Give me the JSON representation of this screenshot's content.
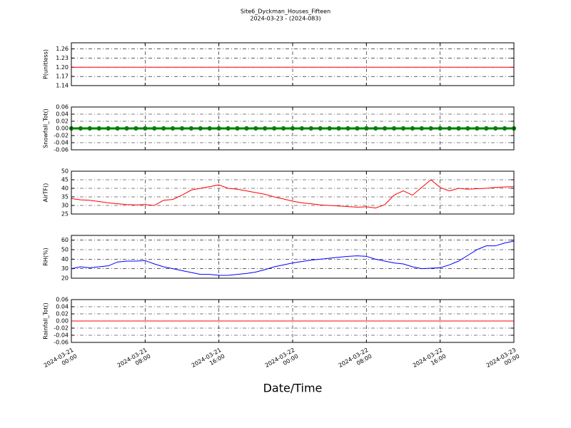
{
  "title": "Site6_Dyckman_Houses_Fifteen",
  "subtitle": "2024-03-23 - (2024-083)",
  "xlabel": "Date/Time",
  "chart_data": [
    {
      "type": "line",
      "ylabel": "P(unitless)",
      "grid": true,
      "x": [
        "2024-03-21 00:00",
        "2024-03-21 01:00",
        "2024-03-21 02:00",
        "2024-03-21 03:00",
        "2024-03-21 04:00",
        "2024-03-21 05:00",
        "2024-03-21 06:00",
        "2024-03-21 07:00",
        "2024-03-21 08:00",
        "2024-03-21 09:00",
        "2024-03-21 10:00",
        "2024-03-21 11:00",
        "2024-03-21 12:00",
        "2024-03-21 13:00",
        "2024-03-21 14:00",
        "2024-03-21 15:00",
        "2024-03-21 16:00",
        "2024-03-21 17:00",
        "2024-03-21 18:00",
        "2024-03-21 19:00",
        "2024-03-21 20:00",
        "2024-03-21 21:00",
        "2024-03-21 22:00",
        "2024-03-21 23:00",
        "2024-03-22 00:00",
        "2024-03-22 01:00",
        "2024-03-22 02:00",
        "2024-03-22 03:00",
        "2024-03-22 04:00",
        "2024-03-22 05:00",
        "2024-03-22 06:00",
        "2024-03-22 07:00",
        "2024-03-22 08:00",
        "2024-03-22 09:00",
        "2024-03-22 10:00",
        "2024-03-22 11:00",
        "2024-03-22 12:00",
        "2024-03-22 13:00",
        "2024-03-22 14:00",
        "2024-03-22 15:00",
        "2024-03-22 16:00",
        "2024-03-22 17:00",
        "2024-03-22 18:00",
        "2024-03-22 19:00",
        "2024-03-22 20:00",
        "2024-03-22 21:00",
        "2024-03-22 22:00",
        "2024-03-22 23:00",
        "2024-03-23 00:00"
      ],
      "xlim": [
        "2024-03-21 00:00",
        "2024-03-23 00:00"
      ],
      "ylim": [
        1.14,
        1.28
      ],
      "yticks": [
        1.14,
        1.17,
        {
          "value": 1.2,
          "label": "1.20"
        },
        1.23,
        1.26
      ],
      "series": [
        {
          "color": "#ff0000",
          "values": [
            1.2,
            1.2,
            1.2,
            1.2,
            1.2,
            1.2,
            1.2,
            1.2,
            1.2,
            1.2,
            1.2,
            1.2,
            1.2,
            1.2,
            1.2,
            1.2,
            1.2,
            1.2,
            1.2,
            1.2,
            1.2,
            1.2,
            1.2,
            1.2,
            1.2,
            1.2,
            1.2,
            1.2,
            1.2,
            1.2,
            1.2,
            1.2,
            1.2,
            1.2,
            1.2,
            1.2,
            1.2,
            1.2,
            1.2,
            1.2,
            1.2,
            1.2,
            1.2,
            1.2,
            1.2,
            1.2,
            1.2,
            1.2,
            1.2
          ]
        }
      ]
    },
    {
      "type": "line",
      "ylabel": "Snowfall_Tot()",
      "grid": true,
      "x": [
        "2024-03-21 00:00",
        "2024-03-21 01:00",
        "2024-03-21 02:00",
        "2024-03-21 03:00",
        "2024-03-21 04:00",
        "2024-03-21 05:00",
        "2024-03-21 06:00",
        "2024-03-21 07:00",
        "2024-03-21 08:00",
        "2024-03-21 09:00",
        "2024-03-21 10:00",
        "2024-03-21 11:00",
        "2024-03-21 12:00",
        "2024-03-21 13:00",
        "2024-03-21 14:00",
        "2024-03-21 15:00",
        "2024-03-21 16:00",
        "2024-03-21 17:00",
        "2024-03-21 18:00",
        "2024-03-21 19:00",
        "2024-03-21 20:00",
        "2024-03-21 21:00",
        "2024-03-21 22:00",
        "2024-03-21 23:00",
        "2024-03-22 00:00",
        "2024-03-22 01:00",
        "2024-03-22 02:00",
        "2024-03-22 03:00",
        "2024-03-22 04:00",
        "2024-03-22 05:00",
        "2024-03-22 06:00",
        "2024-03-22 07:00",
        "2024-03-22 08:00",
        "2024-03-22 09:00",
        "2024-03-22 10:00",
        "2024-03-22 11:00",
        "2024-03-22 12:00",
        "2024-03-22 13:00",
        "2024-03-22 14:00",
        "2024-03-22 15:00",
        "2024-03-22 16:00",
        "2024-03-22 17:00",
        "2024-03-22 18:00",
        "2024-03-22 19:00",
        "2024-03-22 20:00",
        "2024-03-22 21:00",
        "2024-03-22 22:00",
        "2024-03-22 23:00",
        "2024-03-23 00:00"
      ],
      "xlim": [
        "2024-03-21 00:00",
        "2024-03-23 00:00"
      ],
      "ylim": [
        -0.06,
        0.06
      ],
      "yticks": [
        -0.06,
        -0.04,
        -0.02,
        {
          "value": 0,
          "label": "0.00"
        },
        0.02,
        0.04,
        0.06
      ],
      "series": [
        {
          "color": "#008000",
          "marker": "o",
          "values": [
            0,
            0,
            0,
            0,
            0,
            0,
            0,
            0,
            0,
            0,
            0,
            0,
            0,
            0,
            0,
            0,
            0,
            0,
            0,
            0,
            0,
            0,
            0,
            0,
            0,
            0,
            0,
            0,
            0,
            0,
            0,
            0,
            0,
            0,
            0,
            0,
            0,
            0,
            0,
            0,
            0,
            0,
            0,
            0,
            0,
            0,
            0,
            0,
            0
          ]
        }
      ]
    },
    {
      "type": "line",
      "ylabel": "AirTF()",
      "grid": true,
      "x": [
        "2024-03-21 00:00",
        "2024-03-21 01:00",
        "2024-03-21 02:00",
        "2024-03-21 03:00",
        "2024-03-21 04:00",
        "2024-03-21 05:00",
        "2024-03-21 06:00",
        "2024-03-21 07:00",
        "2024-03-21 08:00",
        "2024-03-21 09:00",
        "2024-03-21 10:00",
        "2024-03-21 11:00",
        "2024-03-21 12:00",
        "2024-03-21 13:00",
        "2024-03-21 14:00",
        "2024-03-21 15:00",
        "2024-03-21 16:00",
        "2024-03-21 17:00",
        "2024-03-21 18:00",
        "2024-03-21 19:00",
        "2024-03-21 20:00",
        "2024-03-21 21:00",
        "2024-03-21 22:00",
        "2024-03-21 23:00",
        "2024-03-22 00:00",
        "2024-03-22 01:00",
        "2024-03-22 02:00",
        "2024-03-22 03:00",
        "2024-03-22 04:00",
        "2024-03-22 05:00",
        "2024-03-22 06:00",
        "2024-03-22 07:00",
        "2024-03-22 08:00",
        "2024-03-22 09:00",
        "2024-03-22 10:00",
        "2024-03-22 11:00",
        "2024-03-22 12:00",
        "2024-03-22 13:00",
        "2024-03-22 14:00",
        "2024-03-22 15:00",
        "2024-03-22 16:00",
        "2024-03-22 17:00",
        "2024-03-22 18:00",
        "2024-03-22 19:00",
        "2024-03-22 20:00",
        "2024-03-22 21:00",
        "2024-03-22 22:00",
        "2024-03-22 23:00",
        "2024-03-23 00:00"
      ],
      "xlim": [
        "2024-03-21 00:00",
        "2024-03-23 00:00"
      ],
      "ylim": [
        25,
        50
      ],
      "yticks": [
        25,
        30,
        35,
        40,
        45,
        50
      ],
      "series": [
        {
          "color": "#ff0000",
          "values": [
            34,
            33.3,
            33,
            32.3,
            31.5,
            31,
            30.5,
            30.3,
            30.5,
            30,
            33,
            33.5,
            36,
            39,
            40,
            41,
            42,
            40,
            39.5,
            38.5,
            37.5,
            36.5,
            35,
            33.8,
            32.5,
            31.5,
            31,
            30.3,
            30,
            29.7,
            29.3,
            29,
            29.2,
            28.5,
            30.5,
            36,
            38.5,
            36,
            40.5,
            45,
            40.5,
            38.5,
            40,
            39.5,
            39.8,
            40,
            40.5,
            40.8,
            41
          ]
        }
      ]
    },
    {
      "type": "line",
      "ylabel": "RH(%)",
      "grid": true,
      "x": [
        "2024-03-21 00:00",
        "2024-03-21 01:00",
        "2024-03-21 02:00",
        "2024-03-21 03:00",
        "2024-03-21 04:00",
        "2024-03-21 05:00",
        "2024-03-21 06:00",
        "2024-03-21 07:00",
        "2024-03-21 08:00",
        "2024-03-21 09:00",
        "2024-03-21 10:00",
        "2024-03-21 11:00",
        "2024-03-21 12:00",
        "2024-03-21 13:00",
        "2024-03-21 14:00",
        "2024-03-21 15:00",
        "2024-03-21 16:00",
        "2024-03-21 17:00",
        "2024-03-21 18:00",
        "2024-03-21 19:00",
        "2024-03-21 20:00",
        "2024-03-21 21:00",
        "2024-03-21 22:00",
        "2024-03-21 23:00",
        "2024-03-22 00:00",
        "2024-03-22 01:00",
        "2024-03-22 02:00",
        "2024-03-22 03:00",
        "2024-03-22 04:00",
        "2024-03-22 05:00",
        "2024-03-22 06:00",
        "2024-03-22 07:00",
        "2024-03-22 08:00",
        "2024-03-22 09:00",
        "2024-03-22 10:00",
        "2024-03-22 11:00",
        "2024-03-22 12:00",
        "2024-03-22 13:00",
        "2024-03-22 14:00",
        "2024-03-22 15:00",
        "2024-03-22 16:00",
        "2024-03-22 17:00",
        "2024-03-22 18:00",
        "2024-03-22 19:00",
        "2024-03-22 20:00",
        "2024-03-22 21:00",
        "2024-03-22 22:00",
        "2024-03-22 23:00",
        "2024-03-23 00:00"
      ],
      "xlim": [
        "2024-03-21 00:00",
        "2024-03-23 00:00"
      ],
      "ylim": [
        20,
        65
      ],
      "yticks": [
        20,
        30,
        40,
        50,
        60
      ],
      "series": [
        {
          "color": "#0000ff",
          "values": [
            30,
            32,
            31,
            32,
            33,
            37,
            38,
            38,
            38.5,
            35,
            32,
            30,
            28,
            26,
            24,
            24,
            23,
            23,
            24,
            25,
            26.5,
            29,
            32,
            34,
            36,
            37.5,
            39,
            40,
            41,
            42,
            43,
            43.5,
            43,
            40,
            38,
            36,
            35,
            32,
            30,
            30.5,
            31,
            34,
            38,
            44,
            50,
            54,
            54,
            57,
            59
          ]
        }
      ]
    },
    {
      "type": "line",
      "ylabel": "Rainfall_Tot()",
      "grid": true,
      "x": [
        "2024-03-21 00:00",
        "2024-03-21 01:00",
        "2024-03-21 02:00",
        "2024-03-21 03:00",
        "2024-03-21 04:00",
        "2024-03-21 05:00",
        "2024-03-21 06:00",
        "2024-03-21 07:00",
        "2024-03-21 08:00",
        "2024-03-21 09:00",
        "2024-03-21 10:00",
        "2024-03-21 11:00",
        "2024-03-21 12:00",
        "2024-03-21 13:00",
        "2024-03-21 14:00",
        "2024-03-21 15:00",
        "2024-03-21 16:00",
        "2024-03-21 17:00",
        "2024-03-21 18:00",
        "2024-03-21 19:00",
        "2024-03-21 20:00",
        "2024-03-21 21:00",
        "2024-03-21 22:00",
        "2024-03-21 23:00",
        "2024-03-22 00:00",
        "2024-03-22 01:00",
        "2024-03-22 02:00",
        "2024-03-22 03:00",
        "2024-03-22 04:00",
        "2024-03-22 05:00",
        "2024-03-22 06:00",
        "2024-03-22 07:00",
        "2024-03-22 08:00",
        "2024-03-22 09:00",
        "2024-03-22 10:00",
        "2024-03-22 11:00",
        "2024-03-22 12:00",
        "2024-03-22 13:00",
        "2024-03-22 14:00",
        "2024-03-22 15:00",
        "2024-03-22 16:00",
        "2024-03-22 17:00",
        "2024-03-22 18:00",
        "2024-03-22 19:00",
        "2024-03-22 20:00",
        "2024-03-22 21:00",
        "2024-03-22 22:00",
        "2024-03-22 23:00",
        "2024-03-23 00:00"
      ],
      "xlim": [
        "2024-03-21 00:00",
        "2024-03-23 00:00"
      ],
      "xticks": [
        {
          "value": "2024-03-21 00:00",
          "label": "2024-03-21\n00:00"
        },
        {
          "value": "2024-03-21 08:00",
          "label": "2024-03-21\n08:00"
        },
        {
          "value": "2024-03-21 16:00",
          "label": "2024-03-21\n16:00"
        },
        {
          "value": "2024-03-22 00:00",
          "label": "2024-03-22\n00:00"
        },
        {
          "value": "2024-03-22 08:00",
          "label": "2024-03-22\n08:00"
        },
        {
          "value": "2024-03-22 16:00",
          "label": "2024-03-22\n16:00"
        },
        {
          "value": "2024-03-23 00:00",
          "label": "2024-03-23\n00:00"
        }
      ],
      "ylim": [
        -0.06,
        0.06
      ],
      "yticks": [
        -0.06,
        -0.04,
        -0.02,
        {
          "value": 0,
          "label": "0.00"
        },
        0.02,
        0.04,
        0.06
      ],
      "series": [
        {
          "color": "#ff0000",
          "values": [
            0,
            0,
            0,
            0,
            0,
            0,
            0,
            0,
            0,
            0,
            0,
            0,
            0,
            0,
            0,
            0,
            0,
            0,
            0,
            0,
            0,
            0,
            0,
            0,
            0,
            0,
            0,
            0,
            0,
            0,
            0,
            0,
            0,
            0,
            0,
            0,
            0,
            0,
            0,
            0,
            0,
            0,
            0,
            0,
            0,
            0,
            0,
            0,
            0
          ]
        }
      ]
    }
  ]
}
